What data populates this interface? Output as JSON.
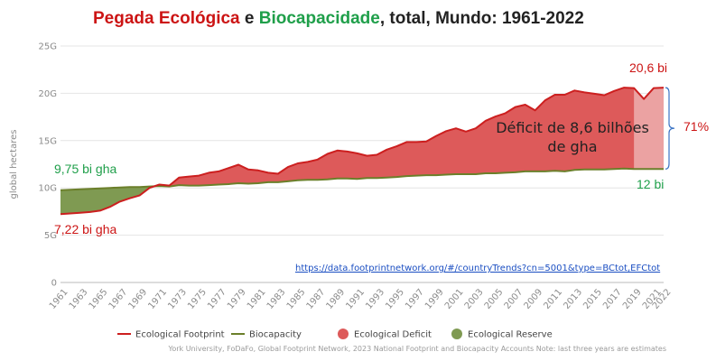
{
  "title": {
    "part1": "Pegada Ecológica",
    "part2": " e ",
    "part3": "Biocapacidade",
    "part4": ", total, Mundo: 1961-2022"
  },
  "colors": {
    "footprint": "#cc1f1f",
    "biocapacity": "#6b7f2a",
    "deficit_fill": "#dd5a5a",
    "reserve_fill": "#7f9a52",
    "estimate_fill": "#eba2a2",
    "annot_red": "#cc1414",
    "annot_green": "#1f9f4a",
    "brace": "#3a73c4"
  },
  "annotations": {
    "start_bio": "9,75 bi gha",
    "start_fp": "7,22 bi gha",
    "end_fp": "20,6 bi",
    "end_bio": "12 bi",
    "deficit_line1": "Déficit de 8,6 bilhões",
    "deficit_line2": "de gha",
    "percent": "71%"
  },
  "link": "https://data.footprintnetwork.org/#/countryTrends?cn=5001&type=BCtot,EFCtot",
  "source": "York University, FoDaFo, Global Footprint Network, 2023 National Footprint and Biocapacity Accounts Note: last three years are estimates",
  "chart_data": {
    "type": "area",
    "title": "Pegada Ecológica e Biocapacidade, total, Mundo: 1961-2022",
    "ylabel": "global hectares",
    "xlabel": "",
    "ylim": [
      0,
      25
    ],
    "grid": "horizontal",
    "legend_position": "bottom",
    "y_ticks": [
      "0",
      "5G",
      "10G",
      "15G",
      "20G",
      "25G"
    ],
    "x_ticks": [
      "1961",
      "1963",
      "1965",
      "1967",
      "1969",
      "1971",
      "1973",
      "1975",
      "1977",
      "1979",
      "1981",
      "1983",
      "1985",
      "1987",
      "1989",
      "1991",
      "1993",
      "1995",
      "1997",
      "1999",
      "2001",
      "2003",
      "2005",
      "2007",
      "2009",
      "2011",
      "2013",
      "2015",
      "2017",
      "2019",
      "2021",
      "2022"
    ],
    "x": [
      1961,
      1962,
      1963,
      1964,
      1965,
      1966,
      1967,
      1968,
      1969,
      1970,
      1971,
      1972,
      1973,
      1974,
      1975,
      1976,
      1977,
      1978,
      1979,
      1980,
      1981,
      1982,
      1983,
      1984,
      1985,
      1986,
      1987,
      1988,
      1989,
      1990,
      1991,
      1992,
      1993,
      1994,
      1995,
      1996,
      1997,
      1998,
      1999,
      2000,
      2001,
      2002,
      2003,
      2004,
      2005,
      2006,
      2007,
      2008,
      2009,
      2010,
      2011,
      2012,
      2013,
      2014,
      2015,
      2016,
      2017,
      2018,
      2019,
      2020,
      2021,
      2022
    ],
    "series": [
      {
        "name": "Ecological Footprint",
        "values": [
          7.22,
          7.3,
          7.38,
          7.45,
          7.6,
          8.0,
          8.55,
          8.9,
          9.2,
          10.0,
          10.35,
          10.25,
          11.1,
          11.2,
          11.3,
          11.6,
          11.75,
          12.1,
          12.45,
          11.95,
          11.85,
          11.6,
          11.5,
          12.2,
          12.6,
          12.75,
          13.0,
          13.6,
          13.95,
          13.85,
          13.65,
          13.4,
          13.5,
          14.05,
          14.4,
          14.85,
          14.85,
          14.9,
          15.5,
          16.0,
          16.3,
          15.95,
          16.3,
          17.1,
          17.55,
          17.9,
          18.55,
          18.8,
          18.2,
          19.25,
          19.85,
          19.85,
          20.3,
          20.1,
          19.95,
          19.8,
          20.25,
          20.6,
          20.55,
          19.4,
          20.55,
          20.6
        ]
      },
      {
        "name": "Biocapacity",
        "values": [
          9.75,
          9.8,
          9.85,
          9.9,
          9.95,
          10.0,
          10.05,
          10.1,
          10.1,
          10.15,
          10.2,
          10.15,
          10.3,
          10.25,
          10.25,
          10.3,
          10.35,
          10.4,
          10.5,
          10.45,
          10.5,
          10.6,
          10.6,
          10.7,
          10.8,
          10.85,
          10.85,
          10.9,
          11.0,
          11.0,
          10.95,
          11.05,
          11.05,
          11.1,
          11.15,
          11.25,
          11.3,
          11.35,
          11.35,
          11.4,
          11.45,
          11.45,
          11.45,
          11.55,
          11.55,
          11.6,
          11.65,
          11.75,
          11.75,
          11.75,
          11.8,
          11.75,
          11.9,
          11.95,
          11.95,
          11.95,
          12.0,
          12.05,
          12.0,
          12.0,
          12.0,
          12.0
        ]
      }
    ],
    "legend": [
      "Ecological Footprint",
      "Biocapacity",
      "Ecological Deficit",
      "Ecological Reserve"
    ],
    "estimate_years": [
      2020,
      2022
    ]
  }
}
